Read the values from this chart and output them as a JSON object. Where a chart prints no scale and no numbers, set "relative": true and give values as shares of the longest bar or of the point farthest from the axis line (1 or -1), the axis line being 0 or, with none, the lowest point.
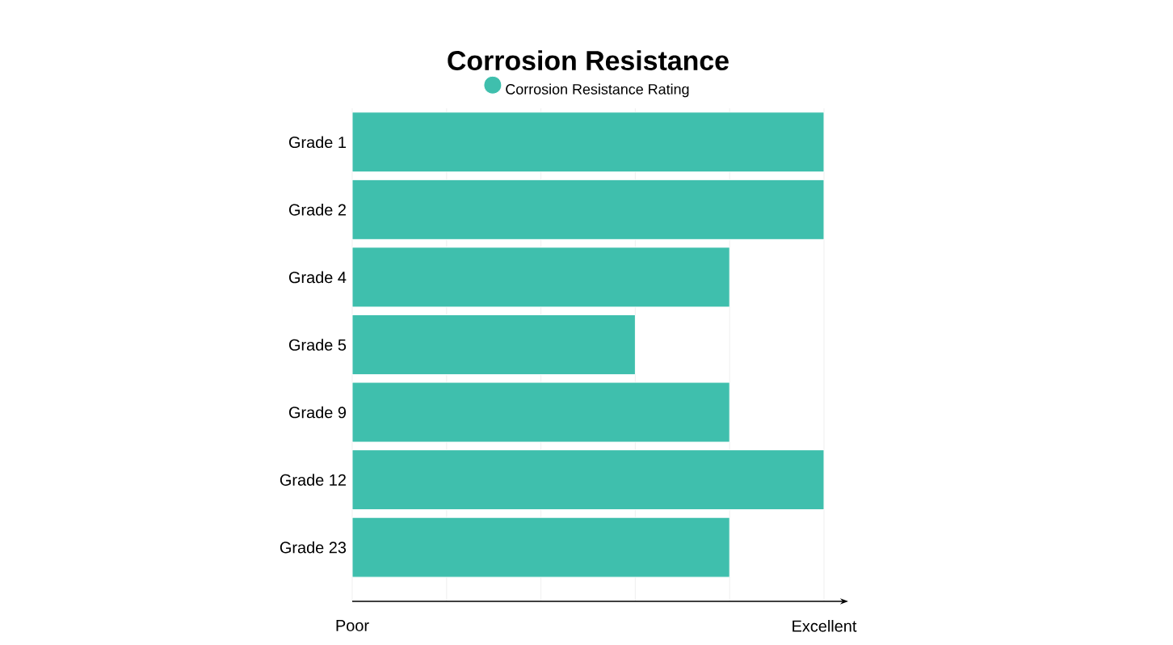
{
  "chart_data": {
    "type": "bar",
    "orientation": "horizontal",
    "title": "Corrosion Resistance",
    "relative": true,
    "categories": [
      "Grade 1",
      "Grade 2",
      "Grade 4",
      "Grade 5",
      "Grade 9",
      "Grade 12",
      "Grade 23"
    ],
    "series": [
      {
        "name": "Corrosion Resistance Rating",
        "color": "#3fbfad",
        "values": [
          1,
          1,
          0.8,
          0.6,
          0.8,
          1,
          0.8
        ]
      }
    ],
    "annotations": [
      "Poor",
      "Excellent"
    ],
    "grid": "x",
    "legend": "top"
  }
}
